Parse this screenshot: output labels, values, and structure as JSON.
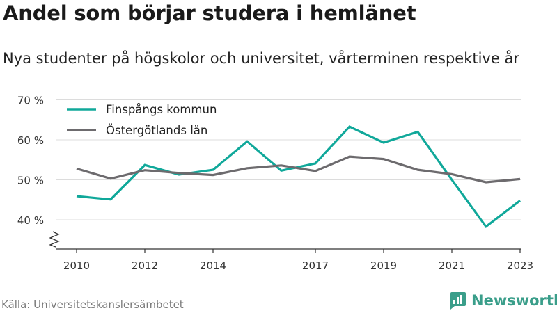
{
  "title": "Andel som börjar studera i hemlänet",
  "subtitle": "Nya studenter på högskolor och universitet, vårterminen respektive år",
  "source": "Källa: Universitetskanslersämbetet",
  "brand": {
    "name": "Newsworthy",
    "icon": "newsworthy-logo-icon",
    "color": "#3a9e8a"
  },
  "chart_data": {
    "type": "line",
    "x": [
      2010,
      2011,
      2012,
      2013,
      2014,
      2015,
      2016,
      2017,
      2018,
      2019,
      2020,
      2021,
      2022,
      2023
    ],
    "x_tick_labels": [
      "2010",
      "2012",
      "2014",
      "2017",
      "2019",
      "2021",
      "2023"
    ],
    "y_tick_labels": [
      "70 %",
      "60 %",
      "50 %",
      "40 %"
    ],
    "y_ticks": [
      70,
      60,
      50,
      40
    ],
    "ylim": [
      35,
      70
    ],
    "axis_break": true,
    "grid": true,
    "legend_position": "top-left",
    "series": [
      {
        "name": "Finspångs kommun",
        "color": "#10a89a",
        "values": [
          45.9,
          45.1,
          53.7,
          51.3,
          52.5,
          59.6,
          52.3,
          54.1,
          63.3,
          59.3,
          62.0,
          50.0,
          38.3,
          44.8
        ]
      },
      {
        "name": "Östergötlands län",
        "color": "#6d6b6e",
        "values": [
          52.8,
          50.3,
          52.4,
          51.7,
          51.2,
          52.9,
          53.6,
          52.2,
          55.8,
          55.2,
          52.5,
          51.4,
          49.4,
          50.2
        ]
      }
    ]
  }
}
